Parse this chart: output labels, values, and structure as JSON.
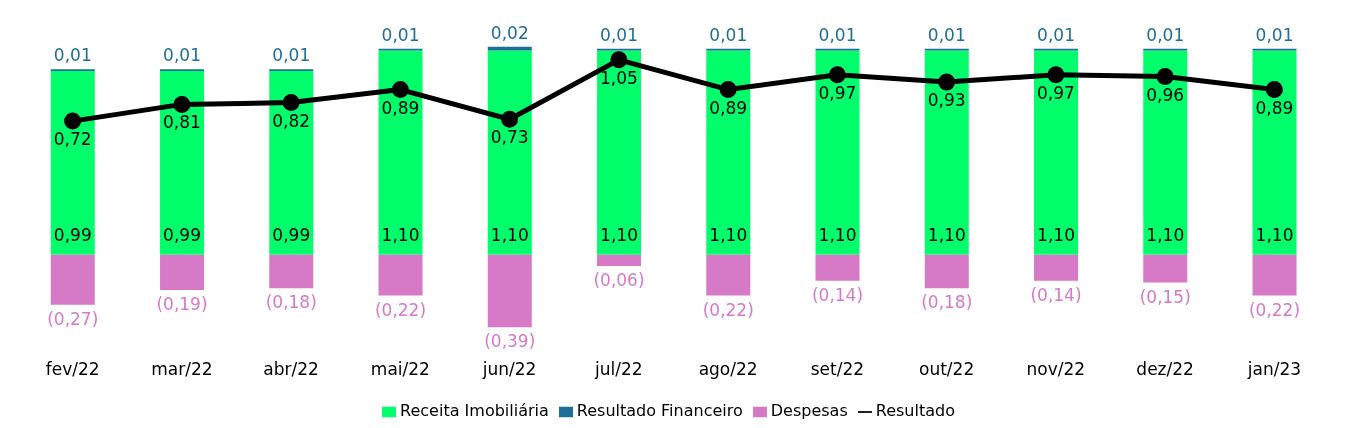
{
  "chart_data": {
    "type": "bar",
    "stacked": true,
    "categories": [
      "fev/22",
      "mar/22",
      "abr/22",
      "mai/22",
      "jun/22",
      "jul/22",
      "ago/22",
      "set/22",
      "out/22",
      "nov/22",
      "dez/22",
      "jan/23"
    ],
    "series": [
      {
        "name": "Receita Imobiliária",
        "color": "#00ff6a",
        "values": [
          0.99,
          0.99,
          0.99,
          1.1,
          1.1,
          1.1,
          1.1,
          1.1,
          1.1,
          1.1,
          1.1,
          1.1
        ],
        "value_labels": [
          "0,99",
          "0,99",
          "0,99",
          "1,10",
          "1,10",
          "1,10",
          "1,10",
          "1,10",
          "1,10",
          "1,10",
          "1,10",
          "1,10"
        ]
      },
      {
        "name": "Resultado Financeiro",
        "color": "#1f6e96",
        "values": [
          0.01,
          0.01,
          0.01,
          0.01,
          0.02,
          0.01,
          0.01,
          0.01,
          0.01,
          0.01,
          0.01,
          0.01
        ],
        "value_labels": [
          "0,01",
          "0,01",
          "0,01",
          "0,01",
          "0,02",
          "0,01",
          "0,01",
          "0,01",
          "0,01",
          "0,01",
          "0,01",
          "0,01"
        ]
      },
      {
        "name": "Despesas",
        "color": "#d67ac8",
        "values": [
          -0.27,
          -0.19,
          -0.18,
          -0.22,
          -0.39,
          -0.06,
          -0.22,
          -0.14,
          -0.18,
          -0.14,
          -0.15,
          -0.22
        ],
        "value_labels": [
          "(0,27)",
          "(0,19)",
          "(0,18)",
          "(0,22)",
          "(0,39)",
          "(0,06)",
          "(0,22)",
          "(0,14)",
          "(0,18)",
          "(0,14)",
          "(0,15)",
          "(0,22)"
        ]
      },
      {
        "name": "Resultado",
        "type": "line",
        "color": "#000000",
        "values": [
          0.72,
          0.81,
          0.82,
          0.89,
          0.73,
          1.05,
          0.89,
          0.97,
          0.93,
          0.97,
          0.96,
          0.89
        ],
        "value_labels": [
          "0,72",
          "0,81",
          "0,82",
          "0,89",
          "0,73",
          "1,05",
          "0,89",
          "0,97",
          "0,93",
          "0,97",
          "0,96",
          "0,89"
        ]
      }
    ],
    "tick_labels": "x",
    "grid": false,
    "legend": "bottom",
    "marker": "circle"
  }
}
